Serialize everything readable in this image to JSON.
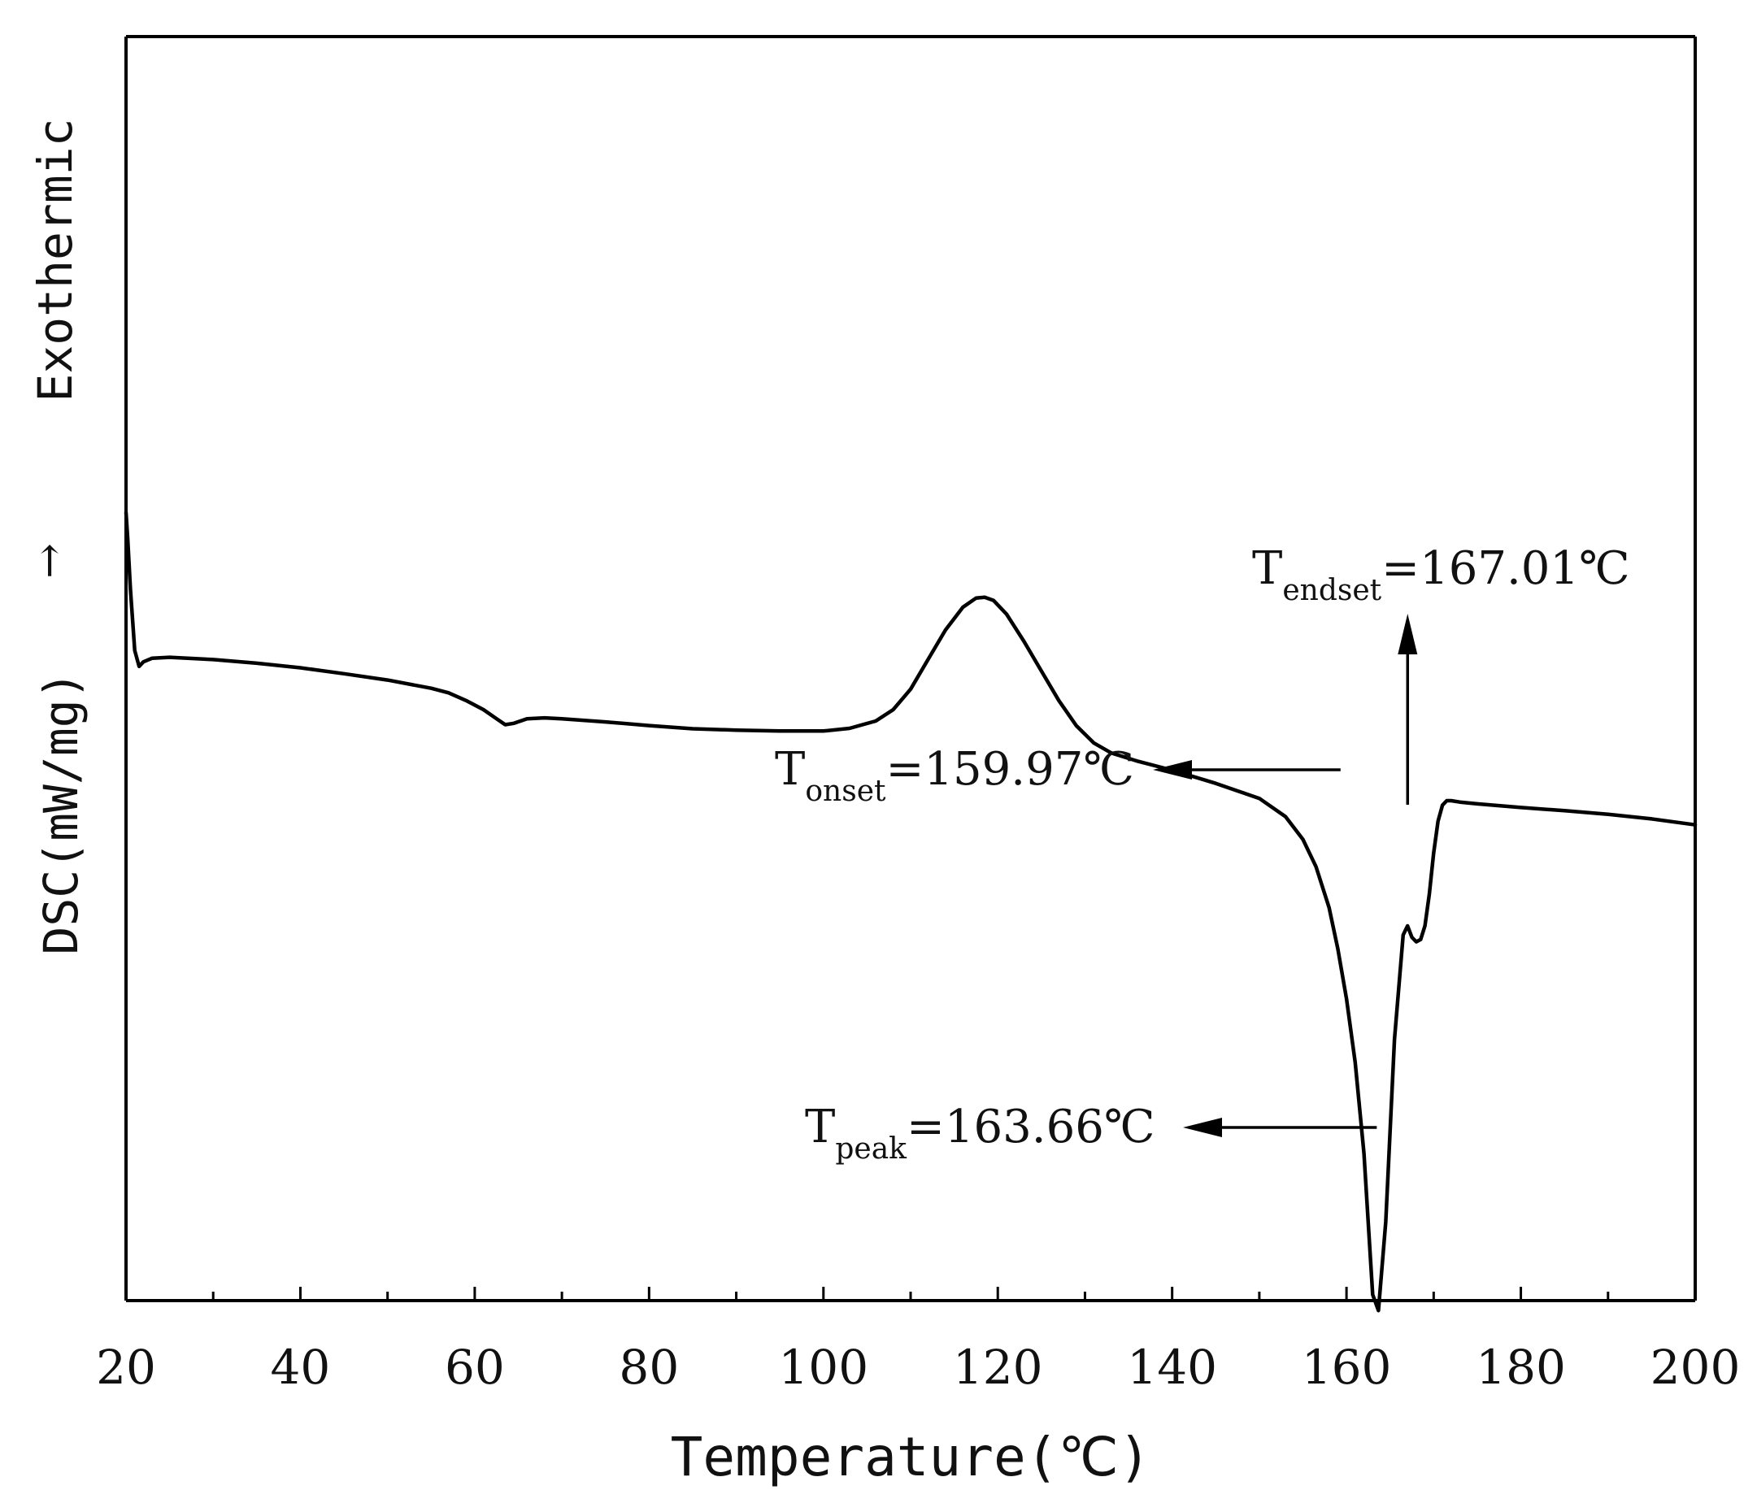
{
  "chart_data": {
    "type": "line",
    "xlabel": "Temperature(℃)",
    "ylabel": "DSC(mW/mg)",
    "ylabel_direction": "Exothermic",
    "ylabel_direction_arrow": "→",
    "xlim": [
      20,
      200
    ],
    "x_ticks": [
      20,
      40,
      60,
      80,
      100,
      120,
      140,
      160,
      180,
      200
    ],
    "y_ticks": [],
    "grid": false,
    "legend": "none",
    "line_color": "#000000",
    "series": [
      {
        "x": [
          20.0,
          20.2,
          20.5,
          21.0,
          21.5,
          22.0,
          23.0,
          25.0,
          30.0,
          35.0,
          40.0,
          45.0,
          50.0,
          55.0,
          57.0,
          59.0,
          61.0,
          62.5,
          63.5,
          64.5,
          66.0,
          68.0,
          70.0,
          75.0,
          80.0,
          85.0,
          90.0,
          95.0,
          100.0,
          103.0,
          106.0,
          108.0,
          110.0,
          112.0,
          114.0,
          116.0,
          117.5,
          118.5,
          119.5,
          121.0,
          123.0,
          125.0,
          127.0,
          129.0,
          131.0,
          133.0,
          136.0,
          140.0,
          145.0,
          150.0,
          153.0,
          155.0,
          156.5,
          158.0,
          159.0,
          160.0,
          161.0,
          162.0,
          163.0,
          163.66,
          164.5,
          165.5,
          166.5,
          167.0,
          167.5,
          168.0,
          168.5,
          169.0,
          169.5,
          170.0,
          170.5,
          171.0,
          171.5,
          172.0,
          173.0,
          175.0,
          180.0,
          185.0,
          190.0,
          195.0,
          200.0
        ],
        "y": [
          0.08,
          -0.5,
          -1.6,
          -2.95,
          -3.3,
          -3.2,
          -3.12,
          -3.1,
          -3.15,
          -3.23,
          -3.33,
          -3.46,
          -3.6,
          -3.78,
          -3.88,
          -4.05,
          -4.25,
          -4.45,
          -4.58,
          -4.55,
          -4.45,
          -4.43,
          -4.45,
          -4.52,
          -4.6,
          -4.67,
          -4.7,
          -4.72,
          -4.72,
          -4.66,
          -4.5,
          -4.25,
          -3.8,
          -3.15,
          -2.5,
          -2.0,
          -1.8,
          -1.78,
          -1.85,
          -2.15,
          -2.75,
          -3.4,
          -4.05,
          -4.6,
          -4.98,
          -5.2,
          -5.38,
          -5.58,
          -5.87,
          -6.2,
          -6.6,
          -7.1,
          -7.7,
          -8.6,
          -9.5,
          -10.6,
          -12.0,
          -14.0,
          -17.1,
          -17.45,
          -15.5,
          -11.5,
          -9.2,
          -9.0,
          -9.25,
          -9.35,
          -9.3,
          -9.0,
          -8.3,
          -7.4,
          -6.7,
          -6.35,
          -6.25,
          -6.25,
          -6.28,
          -6.32,
          -6.4,
          -6.47,
          -6.55,
          -6.65,
          -6.78
        ]
      }
    ],
    "annotations": [
      {
        "label_main": "T",
        "label_sub": "onset",
        "label_value": "=159.97℃",
        "x": 159.97,
        "arrow": "left"
      },
      {
        "label_main": "T",
        "label_sub": "peak",
        "label_value": "=163.66℃",
        "x": 163.66,
        "arrow": "left"
      },
      {
        "label_main": "T",
        "label_sub": "endset",
        "label_value": "=167.01℃",
        "x": 167.01,
        "arrow": "up"
      }
    ]
  }
}
